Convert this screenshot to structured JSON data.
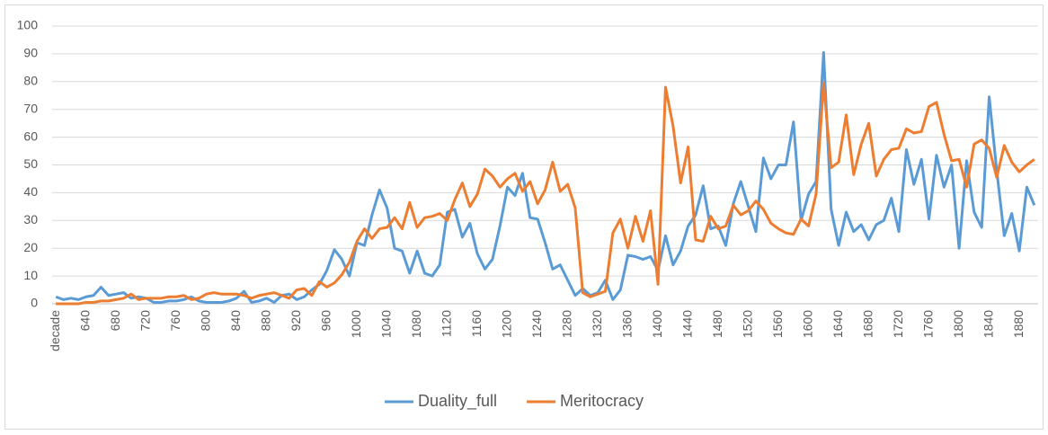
{
  "chart_data": {
    "type": "line",
    "categories": [
      "decade",
      null,
      null,
      null,
      "640",
      null,
      null,
      null,
      "680",
      null,
      null,
      null,
      "720",
      null,
      null,
      null,
      "760",
      null,
      null,
      null,
      "800",
      null,
      null,
      null,
      "840",
      null,
      null,
      null,
      "880",
      null,
      null,
      null,
      "920",
      null,
      null,
      null,
      "960",
      null,
      null,
      null,
      "1000",
      null,
      null,
      null,
      "1040",
      null,
      null,
      null,
      "1080",
      null,
      null,
      null,
      "1120",
      null,
      null,
      null,
      "1160",
      null,
      null,
      null,
      "1200",
      null,
      null,
      null,
      "1240",
      null,
      null,
      null,
      "1280",
      null,
      null,
      null,
      "1320",
      null,
      null,
      null,
      "1360",
      null,
      null,
      null,
      "1400",
      null,
      null,
      null,
      "1440",
      null,
      null,
      null,
      "1480",
      null,
      null,
      null,
      "1520",
      null,
      null,
      null,
      "1560",
      null,
      null,
      null,
      "1600",
      null,
      null,
      null,
      "1640",
      null,
      null,
      null,
      "1680",
      null,
      null,
      null,
      "1720",
      null,
      null,
      null,
      "1760",
      null,
      null,
      null,
      "1800",
      null,
      null,
      null,
      "1840",
      null,
      null,
      null,
      "1880",
      null,
      null
    ],
    "series": [
      {
        "name": "Duality_full",
        "color": "#5b9bd5",
        "values": [
          2.5,
          1.5,
          2,
          1.5,
          2.5,
          3,
          6,
          3,
          3.5,
          4,
          2,
          2.5,
          2,
          0.5,
          0.5,
          1,
          1,
          1.5,
          2.5,
          1,
          0.5,
          0.5,
          0.5,
          1,
          2,
          4.5,
          0.5,
          1,
          2,
          0.5,
          3,
          3.5,
          1.5,
          2.5,
          5,
          7,
          12,
          19.5,
          16,
          10,
          22,
          21,
          32,
          41,
          34.5,
          20,
          19,
          11,
          19,
          11,
          10,
          14,
          33,
          34,
          24,
          29,
          18,
          12.5,
          16,
          28,
          42,
          39,
          47,
          31,
          30.5,
          22,
          12.5,
          14,
          8.5,
          3,
          5.5,
          3,
          4,
          8.5,
          1.5,
          5,
          17.5,
          17,
          16,
          17,
          12,
          24.5,
          14,
          19,
          28,
          32,
          42.5,
          27,
          28,
          21,
          36,
          44,
          35,
          26,
          52.5,
          45,
          50,
          50,
          65.5,
          30,
          39.5,
          44,
          90.5,
          34,
          21,
          33,
          26,
          28.5,
          23,
          28.5,
          30,
          38,
          26,
          55.5,
          43,
          52,
          30.5,
          53.5,
          42,
          50,
          20,
          51.5,
          33,
          27.5,
          74.5,
          48,
          24.5,
          32.5,
          19,
          42,
          35.5
        ]
      },
      {
        "name": "Meritocracy",
        "color": "#ed7d31",
        "values": [
          0,
          0,
          0,
          0,
          0.5,
          0.5,
          1,
          1,
          1.5,
          2,
          3.5,
          1.5,
          2,
          2,
          2,
          2.5,
          2.5,
          3,
          1.5,
          2,
          3.5,
          4,
          3.5,
          3.5,
          3.5,
          3,
          2,
          3,
          3.5,
          4,
          3,
          2,
          5,
          5.5,
          3,
          8,
          6,
          7.5,
          10.5,
          15,
          22.5,
          27,
          23.5,
          27,
          27.5,
          31,
          27,
          36.5,
          27.5,
          31,
          31.5,
          32.5,
          30,
          37.5,
          43.5,
          35,
          39.5,
          48.5,
          46,
          42,
          45,
          47,
          40.5,
          44,
          36,
          41,
          51,
          40.5,
          43,
          34.5,
          4,
          2.5,
          3.5,
          4.5,
          25.5,
          30.5,
          20,
          31.5,
          22.5,
          33.5,
          7,
          78,
          64,
          43.5,
          56.5,
          23,
          22.5,
          31.5,
          27,
          28,
          35.5,
          32,
          33.5,
          37,
          34,
          29,
          27,
          25.5,
          25,
          30.5,
          28,
          39.5,
          79.5,
          49,
          51,
          68,
          46.5,
          57.5,
          65,
          46,
          52,
          55.5,
          56,
          63,
          61.5,
          62,
          71,
          72.5,
          61,
          51.5,
          52,
          42,
          57.5,
          59,
          56,
          45.5,
          57,
          51,
          47.5,
          50,
          52
        ]
      }
    ],
    "ylim": [
      0,
      100
    ],
    "yticks": [
      0,
      10,
      20,
      30,
      40,
      50,
      60,
      70,
      80,
      90,
      100
    ],
    "grid": true,
    "legend": "bottom"
  }
}
